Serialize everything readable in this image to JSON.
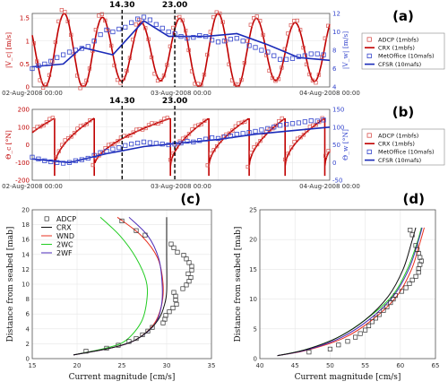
{
  "colors": {
    "adcp": "#d9534f",
    "crx": "#c00000",
    "metoffice": "#3344cc",
    "cfsr": "#1a2ab8",
    "wnd": "#e83020",
    "wc2": "#22cc22",
    "wf2": "#4a2ab8",
    "crx_black": "#111111",
    "grid": "#e6e6e6"
  },
  "chart_data": [
    {
      "id": "a",
      "type": "line",
      "panel_label": "(a)",
      "ylabel_left": "|V_c| [m/s]",
      "ylabel_right": "|V_w| [m/s]",
      "yticks_left": [
        "0",
        "0.5",
        "1",
        "1.5"
      ],
      "yticks_right": [
        "4",
        "6",
        "8",
        "10",
        "12"
      ],
      "ylim_left": [
        0,
        1.6
      ],
      "ylim_right": [
        4,
        12
      ],
      "xlim": [
        0,
        48
      ],
      "xtick_labels": [
        "02-Aug-2008 00:00",
        "03-Aug-2008 00:00",
        "04-Aug-2008 00:00"
      ],
      "markers": [
        {
          "x": 14.5,
          "label": "14.30"
        },
        {
          "x": 23.0,
          "label": "23.00"
        }
      ],
      "legend": [
        "ADCP (1mbfs)",
        "CRX (1mbfs)",
        "MetOffice (10mafs)",
        "CFSR (10mafs)"
      ],
      "cfsr": {
        "x": [
          0,
          5,
          8,
          13,
          18,
          22,
          28,
          33,
          38,
          43,
          48
        ],
        "y": [
          6.2,
          6.5,
          8.3,
          7.5,
          11.2,
          9.5,
          9.5,
          9.8,
          8.6,
          7.2,
          6.9
        ]
      },
      "metoffice": {
        "x": [
          0,
          1,
          2,
          3,
          4,
          5,
          6,
          7,
          8,
          9,
          10,
          11,
          12,
          13,
          14,
          15,
          16,
          17,
          18,
          19,
          20,
          21,
          22,
          23,
          24,
          25,
          26,
          27,
          28,
          29,
          30,
          31,
          32,
          33,
          34,
          35,
          36,
          37,
          38,
          39,
          40,
          41,
          42,
          43,
          44,
          45,
          46,
          47
        ],
        "y": [
          6.0,
          6.3,
          6.5,
          6.8,
          7.2,
          7.5,
          7.8,
          8.0,
          8.2,
          8.4,
          9.0,
          9.7,
          10.2,
          10.0,
          10.3,
          10.5,
          11.0,
          11.4,
          11.6,
          11.3,
          10.8,
          10.4,
          10.0,
          9.8,
          9.5,
          9.3,
          9.4,
          9.6,
          9.5,
          9.1,
          8.9,
          9.0,
          9.2,
          9.3,
          9.0,
          8.5,
          8.3,
          8.0,
          7.8,
          7.4,
          7.0,
          7.0,
          7.1,
          7.3,
          7.4,
          7.6,
          7.6,
          7.5
        ]
      },
      "crx_model": {
        "period": 6.21,
        "phase": 3.6,
        "mean": 0.78,
        "amp": 0.72,
        "amp_var": 0.1
      },
      "adcp_model": {
        "period": 6.21,
        "phase": 3.5,
        "mean": 0.8,
        "amp": 0.78,
        "amp_var": 0.1,
        "dx": 0.5
      }
    },
    {
      "id": "b",
      "type": "line",
      "panel_label": "(b)",
      "ylabel_left": "Θ_c [°N]",
      "ylabel_right": "Θ_w [°N]",
      "yticks_left": [
        "-200",
        "-100",
        "0",
        "100",
        "200"
      ],
      "yticks_right": [
        "-50",
        "0",
        "50",
        "100",
        "150"
      ],
      "ylim_left": [
        -200,
        200
      ],
      "ylim_right": [
        -50,
        150
      ],
      "xlim": [
        0,
        48
      ],
      "xtick_labels": [
        "02-Aug-2008 00:00",
        "03-Aug-2008 00:00",
        "04-Aug-2008 00:00"
      ],
      "markers": [
        {
          "x": 14.5,
          "label": "14.30"
        },
        {
          "x": 23.0,
          "label": "23.00"
        }
      ],
      "legend": [
        "ADCP (1mbfs)",
        "CRX (1mbfs)",
        "MetOffice (10mafs)",
        "CFSR (10mafs)"
      ],
      "cfsr": {
        "x": [
          0,
          6,
          12,
          18,
          24,
          30,
          36,
          42,
          48
        ],
        "y": [
          10,
          0,
          25,
          45,
          55,
          65,
          80,
          90,
          100
        ]
      },
      "metoffice": {
        "x": [
          0,
          1,
          2,
          3,
          4,
          5,
          6,
          7,
          8,
          9,
          10,
          11,
          12,
          13,
          14,
          15,
          16,
          17,
          18,
          19,
          20,
          21,
          22,
          23,
          24,
          25,
          26,
          27,
          28,
          29,
          30,
          31,
          32,
          33,
          34,
          35,
          36,
          37,
          38,
          39,
          40,
          41,
          42,
          43,
          44,
          45,
          46,
          47
        ],
        "y": [
          15,
          10,
          5,
          2,
          0,
          -2,
          0,
          5,
          8,
          12,
          20,
          28,
          32,
          38,
          42,
          48,
          52,
          55,
          58,
          56,
          54,
          52,
          50,
          52,
          55,
          60,
          58,
          62,
          66,
          70,
          68,
          72,
          75,
          80,
          82,
          85,
          88,
          92,
          96,
          100,
          105,
          108,
          110,
          112,
          115,
          118,
          117,
          120
        ]
      },
      "crx_model": {
        "flip_times": [
          3.6,
          10.0,
          22.3,
          28.5,
          35.0,
          40.8,
          47.2
        ],
        "low": -160,
        "high": 160
      },
      "adcp_model": {
        "dx": 0.5
      }
    },
    {
      "id": "c",
      "type": "line",
      "panel_label": "(c)",
      "xlabel": "Current magnitude [cm/s]",
      "ylabel": "Distance from seabed [mab]",
      "xlim": [
        15,
        35
      ],
      "ylim": [
        0,
        20
      ],
      "xticks": [
        "15",
        "20",
        "25",
        "30",
        "35"
      ],
      "yticks": [
        "0",
        "2",
        "4",
        "6",
        "8",
        "10",
        "12",
        "14",
        "16",
        "18",
        "20"
      ],
      "legend": [
        "ADCP",
        "CRX",
        "WND",
        "2WC",
        "2WF"
      ],
      "adcp": {
        "x": [
          21.0,
          23.3,
          24.6,
          25.8,
          26.6,
          27.3,
          27.9,
          28.4,
          29.6,
          29.8,
          29.9,
          30.3,
          30.7,
          31.1,
          31.0,
          31.0,
          30.8,
          31.8,
          32.2,
          32.5,
          32.7,
          32.4,
          32.8,
          32.8,
          32.5,
          32.2,
          31.9,
          31.2,
          30.8,
          30.5,
          27.6,
          26.6,
          25.0
        ],
        "y": [
          1.0,
          1.4,
          1.8,
          2.3,
          2.7,
          3.2,
          3.7,
          4.2,
          4.8,
          5.3,
          5.8,
          6.3,
          6.8,
          7.3,
          7.9,
          8.4,
          8.9,
          9.4,
          9.9,
          10.4,
          10.9,
          11.4,
          11.9,
          12.4,
          12.9,
          13.4,
          13.9,
          14.3,
          14.9,
          15.4,
          16.6,
          17.2,
          18.5
        ]
      },
      "crx": {
        "x": [
          19.6,
          24.0,
          26.5,
          28.2,
          29.2,
          29.7,
          30.0,
          30.0,
          30.0
        ],
        "y": [
          0.5,
          1.5,
          2.5,
          4.0,
          5.5,
          7.0,
          9.0,
          14.0,
          19.0
        ]
      },
      "wnd": {
        "x": [
          19.6,
          24.0,
          26.5,
          28.5,
          29.4,
          29.6,
          29.0,
          27.2,
          24.5
        ],
        "y": [
          0.5,
          1.5,
          2.5,
          4.5,
          7.0,
          10.0,
          13.5,
          16.5,
          19.0
        ]
      },
      "wc2": {
        "x": [
          19.6,
          23.5,
          25.5,
          27.2,
          27.8,
          27.7,
          26.6,
          24.8,
          22.6
        ],
        "y": [
          0.5,
          1.5,
          2.5,
          5.0,
          8.0,
          10.5,
          13.5,
          16.5,
          19.0
        ]
      },
      "wf2": {
        "x": [
          19.6,
          24.0,
          26.5,
          28.6,
          29.4,
          29.5,
          29.1,
          27.9,
          25.8
        ],
        "y": [
          0.5,
          1.5,
          2.5,
          4.5,
          7.0,
          10.0,
          13.5,
          16.5,
          19.0
        ]
      }
    },
    {
      "id": "d",
      "type": "line",
      "panel_label": "(d)",
      "xlabel": "Current magnitude [cm/s]",
      "ylabel": "Distance from seabed [mab]",
      "xlim": [
        40,
        65
      ],
      "ylim": [
        0,
        25
      ],
      "xticks": [
        "40",
        "45",
        "50",
        "55",
        "60",
        "65"
      ],
      "yticks": [
        "0",
        "5",
        "10",
        "15",
        "20",
        "25"
      ],
      "adcp": {
        "x": [
          47.0,
          50.0,
          51.2,
          52.5,
          53.6,
          54.3,
          55.0,
          55.5,
          56.0,
          56.5,
          57.0,
          57.6,
          58.1,
          58.6,
          59.0,
          59.3,
          60.2,
          60.8,
          61.3,
          61.7,
          62.2,
          62.6,
          62.6,
          62.8,
          63.0,
          62.8,
          62.6,
          62.4,
          62.2,
          61.7,
          61.4
        ],
        "y": [
          1.1,
          1.6,
          2.3,
          2.9,
          3.6,
          4.2,
          4.8,
          5.5,
          6.2,
          6.8,
          7.4,
          8.1,
          8.7,
          9.4,
          10.0,
          10.6,
          11.3,
          11.9,
          12.6,
          13.2,
          13.8,
          14.5,
          15.1,
          15.8,
          16.4,
          17.0,
          17.7,
          18.3,
          19.0,
          20.8,
          21.6
        ]
      },
      "crx": {
        "x": [
          42.5,
          46.5,
          51.0,
          55.0,
          58.3,
          60.4,
          61.6,
          62.2
        ],
        "y": [
          0.5,
          1.5,
          3.5,
          6.5,
          10.5,
          15.0,
          19.5,
          22.0
        ]
      },
      "wnd": {
        "x": [
          42.5,
          47.0,
          52.0,
          56.0,
          59.5,
          61.6,
          62.8,
          63.4
        ],
        "y": [
          0.5,
          1.5,
          3.5,
          6.5,
          10.5,
          15.0,
          19.5,
          22.0
        ]
      },
      "wc2": {
        "x": [
          42.5,
          46.5,
          51.0,
          55.0,
          58.8,
          61.0,
          62.4,
          63.0
        ],
        "y": [
          0.5,
          1.5,
          3.5,
          6.5,
          10.5,
          15.0,
          19.5,
          22.0
        ]
      },
      "wf2": {
        "x": [
          42.5,
          46.8,
          51.5,
          55.5,
          59.0,
          61.2,
          62.5,
          63.1
        ],
        "y": [
          0.5,
          1.5,
          3.5,
          6.5,
          10.5,
          15.0,
          19.5,
          22.0
        ]
      }
    }
  ]
}
